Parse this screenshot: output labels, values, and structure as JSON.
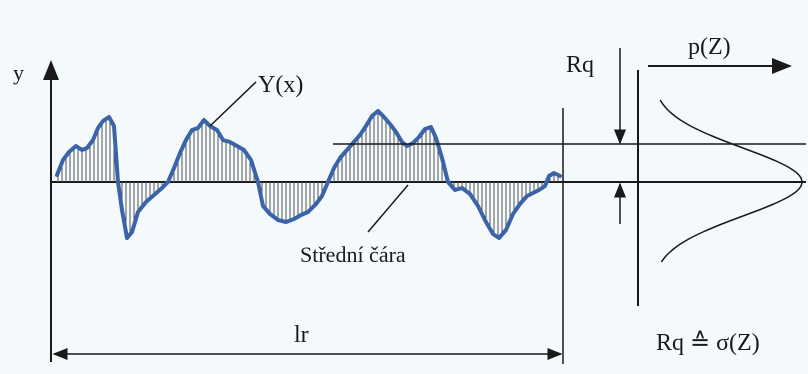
{
  "labels": {
    "y_axis": "y",
    "profile": "Y(x)",
    "rq": "Rq",
    "density": "p(Z)",
    "mean_line": "Střední čára",
    "length": "lr",
    "relation": "Rq ≙ σ(Z)"
  },
  "colors": {
    "background": "#f4f9fc",
    "profile_line": "#3a63a8",
    "hatch": "#555555",
    "lines": "#1a1a1a"
  }
}
